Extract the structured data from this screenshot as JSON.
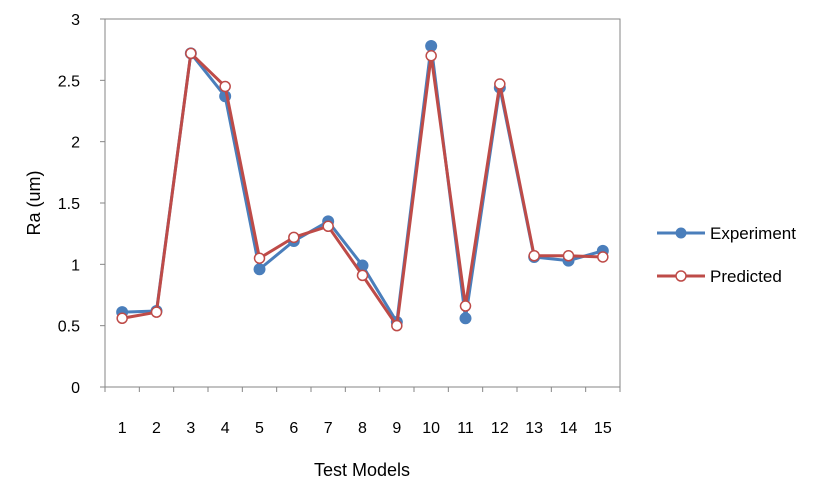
{
  "chart_data": {
    "type": "line",
    "title": "",
    "xlabel": "Test Models",
    "ylabel": "Ra (um)",
    "categories": [
      "1",
      "2",
      "3",
      "4",
      "5",
      "6",
      "7",
      "8",
      "9",
      "10",
      "11",
      "12",
      "13",
      "14",
      "15"
    ],
    "ylim": [
      0,
      3
    ],
    "yticks": [
      "0",
      "0.5",
      "1",
      "1.5",
      "2",
      "2.5",
      "3"
    ],
    "grid": false,
    "legend_position": "right",
    "series": [
      {
        "name": "Experiment",
        "color": "#4a7ebb",
        "marker": "filled-circle",
        "values": [
          0.61,
          0.62,
          2.72,
          2.37,
          0.96,
          1.19,
          1.35,
          0.99,
          0.53,
          2.78,
          0.56,
          2.44,
          1.06,
          1.03,
          1.11
        ]
      },
      {
        "name": "Predicted",
        "color": "#be4b48",
        "marker": "open-circle",
        "values": [
          0.56,
          0.61,
          2.72,
          2.45,
          1.05,
          1.22,
          1.31,
          0.91,
          0.5,
          2.7,
          0.66,
          2.47,
          1.07,
          1.07,
          1.06
        ]
      }
    ]
  }
}
